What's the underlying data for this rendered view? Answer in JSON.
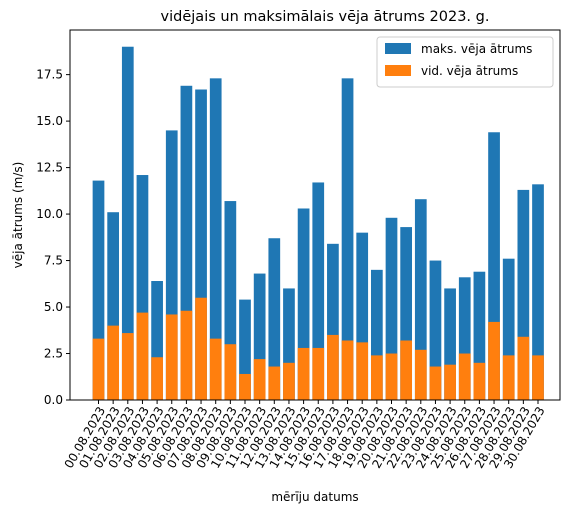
{
  "chart_data": {
    "type": "bar",
    "title": "vidējais un maksimālais vēja ātrums 2023. g.",
    "xlabel": "mērīju datums",
    "ylabel": "vēja ātrums (m/s)",
    "ylim": [
      0,
      19.9
    ],
    "yticks": [
      0.0,
      2.5,
      5.0,
      7.5,
      10.0,
      12.5,
      15.0,
      17.5
    ],
    "ytick_labels": [
      "0.0",
      "2.5",
      "5.0",
      "7.5",
      "10.0",
      "12.5",
      "15.0",
      "17.5"
    ],
    "grid": false,
    "legend_position": "top-right",
    "categories": [
      "00.08.2023",
      "01.08.2023",
      "02.08.2023",
      "03.08.2023",
      "04.08.2023",
      "05.08.2023",
      "06.08.2023",
      "07.08.2023",
      "08.08.2023",
      "09.08.2023",
      "10.08.2023",
      "11.08.2023",
      "12.08.2023",
      "13.08.2023",
      "14.08.2023",
      "15.08.2023",
      "16.08.2023",
      "17.08.2023",
      "18.08.2023",
      "19.08.2023",
      "20.08.2023",
      "21.08.2023",
      "22.08.2023",
      "23.08.2023",
      "24.08.2023",
      "25.08.2023",
      "26.08.2023",
      "27.08.2023",
      "28.08.2023",
      "29.08.2023",
      "30.08.2023"
    ],
    "series": [
      {
        "name": "maks. vēja ātrums",
        "color": "#1f77b4",
        "values": [
          11.8,
          10.1,
          19.0,
          12.1,
          6.4,
          14.5,
          16.9,
          16.7,
          17.3,
          10.7,
          5.4,
          6.8,
          8.7,
          6.0,
          10.3,
          11.7,
          8.4,
          17.3,
          9.0,
          7.0,
          9.8,
          9.3,
          10.8,
          7.5,
          6.0,
          6.6,
          6.9,
          14.4,
          7.6,
          11.3,
          11.6
        ]
      },
      {
        "name": "vid. vēja ātrums",
        "color": "#ff7f0e",
        "values": [
          3.3,
          4.0,
          3.6,
          4.7,
          2.3,
          4.6,
          4.8,
          5.5,
          3.3,
          3.0,
          1.4,
          2.2,
          1.8,
          2.0,
          2.8,
          2.8,
          3.5,
          3.2,
          3.1,
          2.4,
          2.5,
          3.2,
          2.7,
          1.8,
          1.9,
          2.5,
          2.0,
          4.2,
          2.4,
          3.4,
          2.4
        ]
      }
    ]
  }
}
